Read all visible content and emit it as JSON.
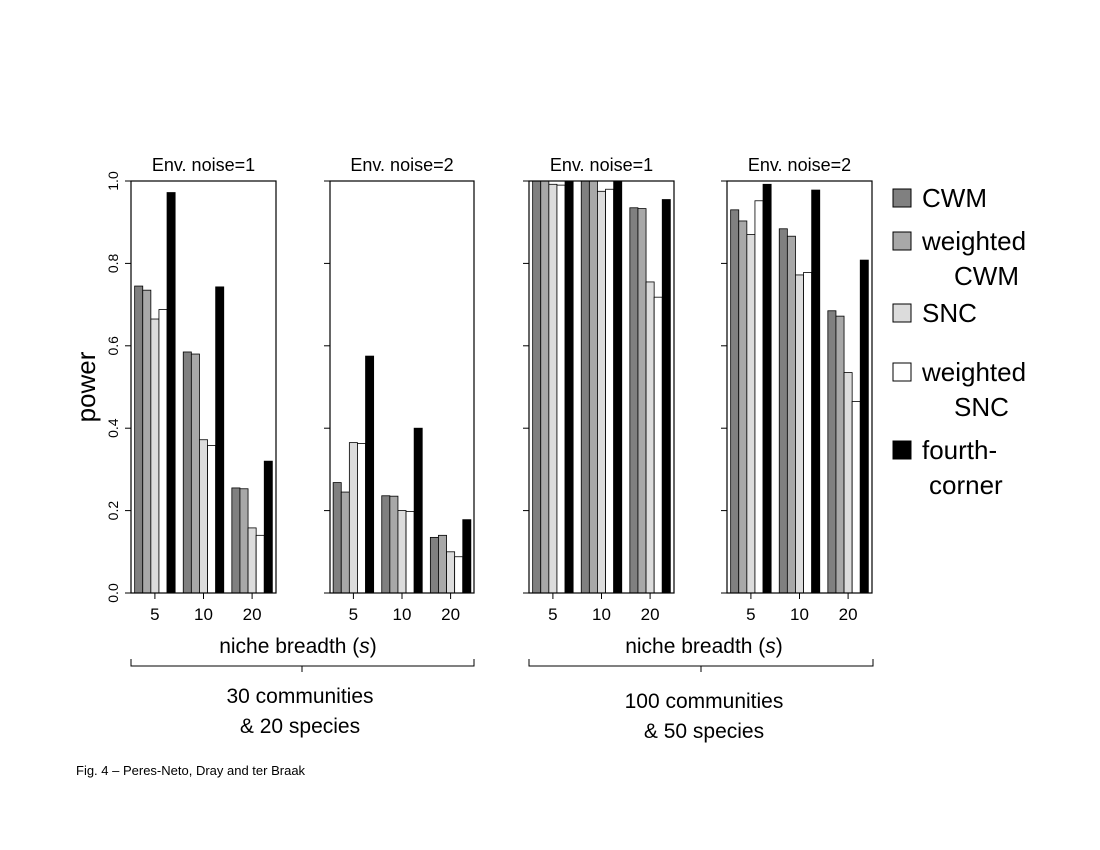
{
  "caption": "Fig. 4 – Peres-Neto, Dray and ter Braak",
  "y_axis_label": "power",
  "y_ticks": [
    "0.0",
    "0.2",
    "0.4",
    "0.6",
    "0.8",
    "1.0"
  ],
  "x_axis_label_main": "niche breadth (",
  "x_axis_label_var": "s",
  "x_axis_label_close": ")",
  "groups": [
    {
      "line1": "30 communities",
      "line2": "& 20 species"
    },
    {
      "line1": "100 communities",
      "line2": "& 50 species"
    }
  ],
  "legend": [
    {
      "lines": [
        "CWM"
      ],
      "color": "#808080"
    },
    {
      "lines": [
        "weighted",
        "CWM"
      ],
      "color": "#a8a8a8"
    },
    {
      "lines": [
        "SNC"
      ],
      "color": "#dcdcdc"
    },
    {
      "lines": [
        "weighted",
        "SNC"
      ],
      "color": "#ffffff"
    },
    {
      "lines": [
        "fourth-",
        "corner"
      ],
      "color": "#000000"
    }
  ],
  "chart_data": [
    {
      "type": "bar",
      "title": "Env. noise=1",
      "categories": [
        "5",
        "10",
        "20"
      ],
      "ylim": [
        0,
        1
      ],
      "series": [
        {
          "name": "CWM",
          "values": [
            0.745,
            0.585,
            0.255
          ]
        },
        {
          "name": "weighted CWM",
          "values": [
            0.735,
            0.58,
            0.253
          ]
        },
        {
          "name": "SNC",
          "values": [
            0.665,
            0.372,
            0.158
          ]
        },
        {
          "name": "weighted SNC",
          "values": [
            0.688,
            0.358,
            0.14
          ]
        },
        {
          "name": "fourth-corner",
          "values": [
            0.972,
            0.743,
            0.32
          ]
        }
      ]
    },
    {
      "type": "bar",
      "title": "Env. noise=2",
      "categories": [
        "5",
        "10",
        "20"
      ],
      "ylim": [
        0,
        1
      ],
      "series": [
        {
          "name": "CWM",
          "values": [
            0.268,
            0.236,
            0.135
          ]
        },
        {
          "name": "weighted CWM",
          "values": [
            0.245,
            0.235,
            0.14
          ]
        },
        {
          "name": "SNC",
          "values": [
            0.365,
            0.2,
            0.1
          ]
        },
        {
          "name": "weighted SNC",
          "values": [
            0.363,
            0.198,
            0.088
          ]
        },
        {
          "name": "fourth-corner",
          "values": [
            0.575,
            0.4,
            0.178
          ]
        }
      ]
    },
    {
      "type": "bar",
      "title": "Env. noise=1",
      "categories": [
        "5",
        "10",
        "20"
      ],
      "ylim": [
        0,
        1
      ],
      "series": [
        {
          "name": "CWM",
          "values": [
            1.0,
            1.0,
            0.935
          ]
        },
        {
          "name": "weighted CWM",
          "values": [
            1.0,
            1.0,
            0.933
          ]
        },
        {
          "name": "SNC",
          "values": [
            0.992,
            0.975,
            0.755
          ]
        },
        {
          "name": "weighted SNC",
          "values": [
            0.99,
            0.98,
            0.718
          ]
        },
        {
          "name": "fourth-corner",
          "values": [
            1.0,
            1.0,
            0.955
          ]
        }
      ]
    },
    {
      "type": "bar",
      "title": "Env. noise=2",
      "categories": [
        "5",
        "10",
        "20"
      ],
      "ylim": [
        0,
        1
      ],
      "series": [
        {
          "name": "CWM",
          "values": [
            0.93,
            0.884,
            0.685
          ]
        },
        {
          "name": "weighted CWM",
          "values": [
            0.903,
            0.866,
            0.672
          ]
        },
        {
          "name": "SNC",
          "values": [
            0.87,
            0.772,
            0.535
          ]
        },
        {
          "name": "weighted SNC",
          "values": [
            0.952,
            0.778,
            0.465
          ]
        },
        {
          "name": "fourth-corner",
          "values": [
            0.992,
            0.978,
            0.808
          ]
        }
      ]
    }
  ]
}
